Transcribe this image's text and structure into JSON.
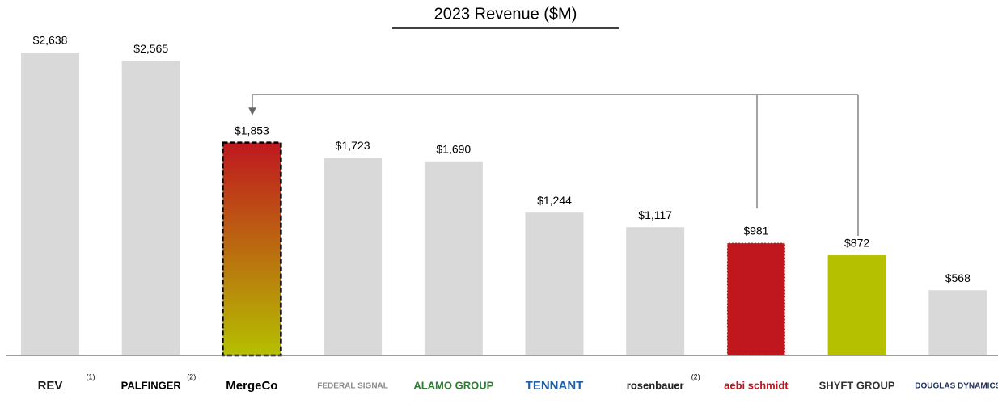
{
  "chart_data": {
    "type": "bar",
    "title": "2023 Revenue ($M)",
    "categories": [
      "REV",
      "PALFINGER",
      "MergeCo",
      "FEDERAL SIGNAL",
      "ALAMO GROUP",
      "TENNANT",
      "rosenbauer",
      "aebi schmidt",
      "SHYFT GROUP",
      "DOUGLAS DYNAMICS"
    ],
    "footnotes": [
      "(1)",
      "(2)",
      null,
      null,
      null,
      null,
      "(2)",
      null,
      null,
      null
    ],
    "values": [
      2638,
      2565,
      1853,
      1723,
      1690,
      1244,
      1117,
      981,
      872,
      568
    ],
    "value_labels": [
      "$2,638",
      "$2,565",
      "$1,853",
      "$1,723",
      "$1,690",
      "$1,244",
      "$1,117",
      "$981",
      "$872",
      "$568"
    ],
    "colors": [
      "#d9d9d9",
      "#d9d9d9",
      {
        "from": "#c0171f",
        "to": "#b5c000"
      },
      "#d9d9d9",
      "#d9d9d9",
      "#d9d9d9",
      "#d9d9d9",
      "#c0171f",
      "#b5c000",
      "#d9d9d9"
    ],
    "dashed": [
      false,
      false,
      true,
      false,
      false,
      false,
      false,
      true,
      false,
      false
    ],
    "label_colors": [
      "#1a1a1a",
      "#000000",
      "#000000",
      "#8a8a8a",
      "#2e7d32",
      "#1f5fa8",
      "#222222",
      "#c0171f",
      "#333333",
      "#1c2f5e"
    ]
  }
}
